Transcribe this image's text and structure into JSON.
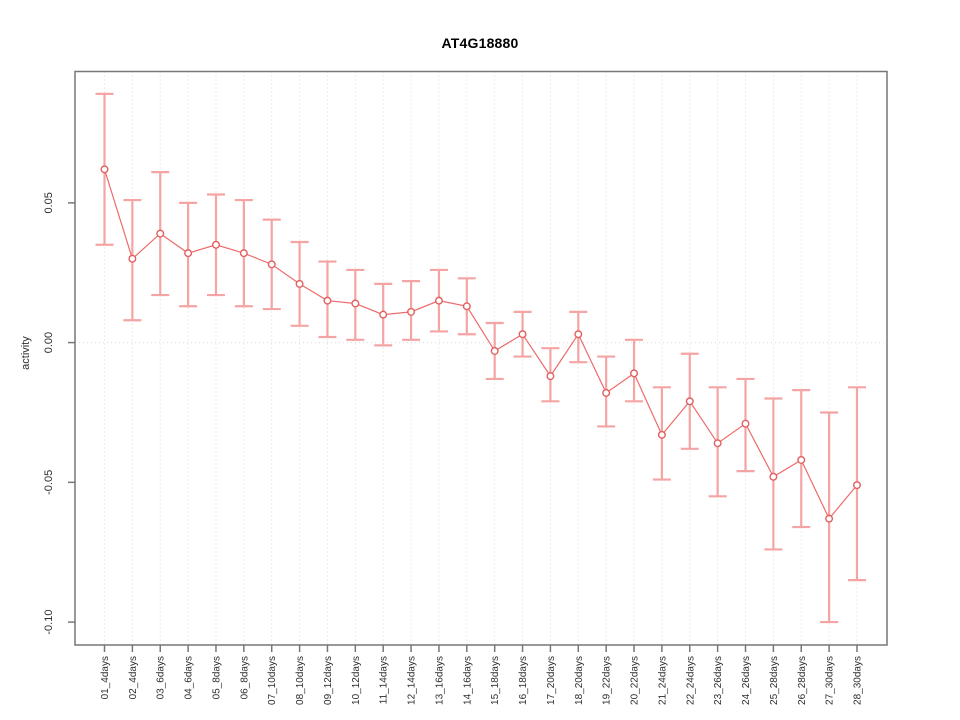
{
  "window": {
    "background": "#ffffff"
  },
  "chart_data": {
    "type": "scatter",
    "subtype": "points-with-error-bars",
    "title": "AT4G18880",
    "xlabel": "",
    "ylabel": "activity",
    "categories": [
      "01_4days",
      "02_4days",
      "03_6days",
      "04_6days",
      "05_8days",
      "06_8days",
      "07_10days",
      "08_10days",
      "09_12days",
      "10_12days",
      "11_14days",
      "12_14days",
      "13_16days",
      "14_16days",
      "15_18days",
      "16_18days",
      "17_20days",
      "18_20days",
      "19_22days",
      "20_22days",
      "21_24days",
      "22_24days",
      "23_26days",
      "24_26days",
      "25_28days",
      "26_28days",
      "27_30days",
      "28_30days"
    ],
    "series": [
      {
        "name": "activity",
        "values": [
          0.062,
          0.03,
          0.039,
          0.032,
          0.035,
          0.032,
          0.028,
          0.021,
          0.015,
          0.014,
          0.01,
          0.011,
          0.015,
          0.013,
          -0.003,
          0.003,
          -0.012,
          0.003,
          -0.018,
          -0.011,
          -0.033,
          -0.021,
          -0.036,
          -0.029,
          -0.048,
          -0.042,
          -0.063,
          -0.051
        ],
        "error_low": [
          0.035,
          0.008,
          0.017,
          0.013,
          0.017,
          0.013,
          0.012,
          0.006,
          0.002,
          0.001,
          -0.001,
          0.001,
          0.004,
          0.003,
          -0.013,
          -0.005,
          -0.021,
          -0.007,
          -0.03,
          -0.021,
          -0.049,
          -0.038,
          -0.055,
          -0.046,
          -0.074,
          -0.066,
          -0.1,
          -0.085
        ],
        "error_high": [
          0.089,
          0.051,
          0.061,
          0.05,
          0.053,
          0.051,
          0.044,
          0.036,
          0.029,
          0.026,
          0.021,
          0.022,
          0.026,
          0.023,
          0.007,
          0.011,
          -0.002,
          0.011,
          -0.005,
          0.001,
          -0.016,
          -0.004,
          -0.016,
          -0.013,
          -0.02,
          -0.017,
          -0.025,
          -0.016
        ]
      }
    ],
    "yticks": {
      "values": [
        0.05,
        0,
        -0.05,
        -0.1
      ],
      "labels": [
        "0.05",
        "0.00",
        "-0.05",
        "-0.10"
      ]
    },
    "ylim": [
      -0.1082,
      0.097
    ],
    "legend": "none",
    "marker": "open-circle",
    "grid": {
      "vertical_dotted_per_category": true,
      "horizontal_dotted_zero_line": true
    },
    "colors": {
      "point_stroke": "#e25f5f",
      "point_fill": "#ffffff",
      "error_bar": "#f5a4a4",
      "connector_line": "#ee6b6b",
      "grid_line": "#d9d9d9",
      "axis_box": "#777777",
      "tick_text": "#2e2e2e",
      "title_text": "#000000"
    }
  }
}
